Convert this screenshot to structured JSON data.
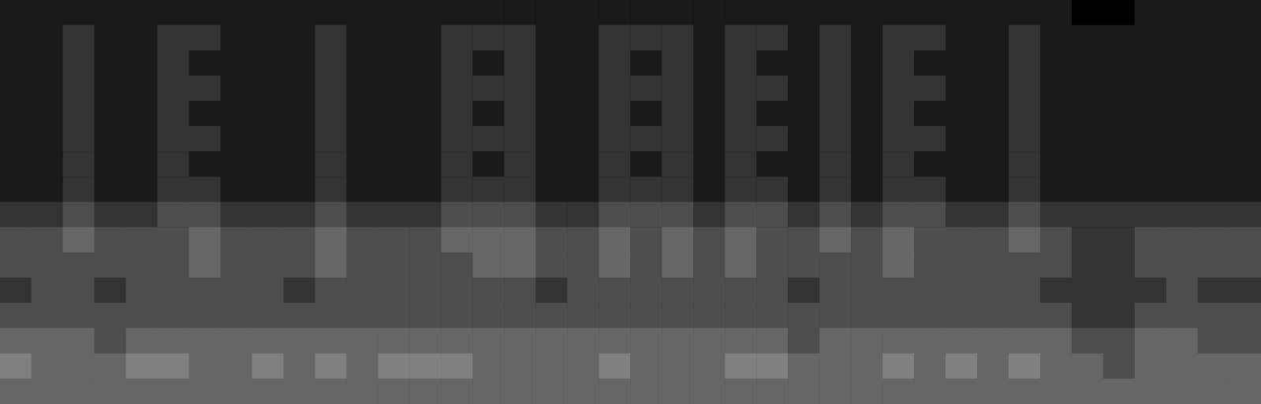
{
  "chart_data": {
    "type": "heatmap",
    "tick_labels": false,
    "color_range": [
      0,
      10
    ],
    "cells": [
      [
        1,
        1,
        1,
        1,
        1,
        1,
        1,
        1,
        1,
        1,
        1,
        1,
        1,
        1,
        1,
        1,
        1,
        1,
        1,
        1,
        1,
        1,
        1,
        1,
        1,
        1,
        1,
        1,
        1,
        1,
        1,
        1,
        1,
        1,
        0,
        0,
        1,
        1,
        1,
        1
      ],
      [
        1,
        1,
        2,
        1,
        1,
        2,
        2,
        1,
        1,
        1,
        2,
        1,
        1,
        1,
        2,
        2,
        2,
        1,
        1,
        2,
        2,
        2,
        1,
        2,
        2,
        1,
        2,
        1,
        2,
        2,
        1,
        1,
        2,
        1,
        1,
        1,
        1,
        1,
        1,
        1
      ],
      [
        1,
        1,
        2,
        1,
        1,
        2,
        1,
        1,
        1,
        1,
        2,
        1,
        1,
        1,
        2,
        1,
        2,
        1,
        1,
        2,
        1,
        2,
        1,
        2,
        1,
        1,
        2,
        1,
        2,
        1,
        1,
        1,
        2,
        1,
        1,
        1,
        1,
        1,
        1,
        1
      ],
      [
        1,
        1,
        2,
        1,
        1,
        2,
        2,
        1,
        1,
        1,
        2,
        1,
        1,
        1,
        2,
        2,
        2,
        1,
        1,
        2,
        2,
        2,
        1,
        2,
        2,
        1,
        2,
        1,
        2,
        2,
        1,
        1,
        2,
        1,
        1,
        1,
        1,
        1,
        1,
        1
      ],
      [
        1,
        1,
        2,
        1,
        1,
        2,
        1,
        1,
        1,
        1,
        2,
        1,
        1,
        1,
        2,
        1,
        2,
        1,
        1,
        2,
        1,
        2,
        1,
        2,
        1,
        1,
        2,
        1,
        2,
        1,
        1,
        1,
        2,
        1,
        1,
        1,
        1,
        1,
        1,
        1
      ],
      [
        1,
        1,
        2,
        1,
        1,
        2,
        2,
        1,
        1,
        1,
        2,
        1,
        1,
        1,
        2,
        2,
        2,
        1,
        1,
        2,
        2,
        2,
        1,
        2,
        2,
        1,
        2,
        1,
        2,
        2,
        1,
        1,
        2,
        1,
        1,
        1,
        1,
        1,
        1,
        1
      ],
      [
        1,
        1,
        2,
        1,
        1,
        2,
        1,
        1,
        1,
        1,
        2,
        1,
        1,
        1,
        2,
        1,
        2,
        1,
        1,
        2,
        1,
        2,
        1,
        2,
        1,
        1,
        2,
        1,
        2,
        1,
        1,
        1,
        2,
        1,
        1,
        1,
        1,
        1,
        1,
        1
      ],
      [
        1,
        1,
        2,
        1,
        1,
        2,
        2,
        1,
        1,
        1,
        2,
        1,
        1,
        1,
        2,
        2,
        2,
        1,
        1,
        2,
        2,
        2,
        1,
        2,
        2,
        1,
        2,
        1,
        2,
        2,
        1,
        1,
        2,
        1,
        1,
        1,
        1,
        1,
        1,
        1
      ],
      [
        2,
        2,
        3,
        2,
        2,
        3,
        3,
        2,
        2,
        2,
        3,
        2,
        2,
        2,
        3,
        3,
        3,
        2,
        2,
        3,
        3,
        3,
        2,
        3,
        3,
        2,
        3,
        2,
        3,
        3,
        2,
        2,
        3,
        2,
        2,
        2,
        2,
        2,
        2,
        2
      ],
      [
        3,
        3,
        4,
        3,
        3,
        3,
        4,
        3,
        3,
        3,
        4,
        3,
        3,
        3,
        4,
        4,
        4,
        3,
        3,
        4,
        3,
        4,
        3,
        4,
        3,
        3,
        4,
        3,
        4,
        3,
        3,
        3,
        4,
        3,
        2,
        2,
        3,
        3,
        3,
        3
      ],
      [
        3,
        3,
        3,
        3,
        3,
        3,
        4,
        3,
        3,
        3,
        4,
        3,
        3,
        3,
        3,
        4,
        4,
        3,
        3,
        4,
        3,
        4,
        3,
        4,
        3,
        3,
        3,
        3,
        4,
        3,
        3,
        3,
        3,
        3,
        2,
        2,
        3,
        3,
        3,
        3
      ],
      [
        2,
        3,
        3,
        2,
        3,
        3,
        3,
        3,
        3,
        2,
        3,
        3,
        3,
        3,
        3,
        3,
        3,
        2,
        3,
        3,
        3,
        3,
        3,
        3,
        3,
        2,
        3,
        3,
        3,
        3,
        3,
        3,
        3,
        2,
        2,
        2,
        2,
        3,
        2,
        2
      ],
      [
        3,
        3,
        3,
        3,
        3,
        3,
        3,
        3,
        3,
        3,
        3,
        3,
        3,
        3,
        3,
        3,
        3,
        3,
        3,
        3,
        3,
        3,
        3,
        3,
        3,
        3,
        3,
        3,
        3,
        3,
        3,
        3,
        3,
        3,
        2,
        2,
        3,
        3,
        3,
        3
      ],
      [
        4,
        4,
        4,
        3,
        4,
        4,
        4,
        4,
        4,
        4,
        4,
        4,
        4,
        4,
        4,
        4,
        4,
        4,
        4,
        4,
        4,
        4,
        4,
        4,
        4,
        3,
        4,
        4,
        4,
        4,
        4,
        4,
        4,
        4,
        3,
        3,
        4,
        4,
        3,
        3
      ],
      [
        5,
        4,
        4,
        4,
        5,
        5,
        4,
        4,
        5,
        4,
        5,
        4,
        5,
        5,
        5,
        4,
        4,
        4,
        4,
        5,
        4,
        4,
        4,
        5,
        5,
        4,
        4,
        4,
        5,
        4,
        5,
        4,
        5,
        4,
        4,
        3,
        4,
        4,
        4,
        4
      ],
      [
        4,
        4,
        4,
        4,
        4,
        4,
        4,
        4,
        4,
        4,
        4,
        4,
        4,
        4,
        4,
        4,
        4,
        4,
        4,
        4,
        4,
        4,
        4,
        4,
        4,
        4,
        4,
        4,
        4,
        4,
        4,
        4,
        4,
        4,
        4,
        4,
        4,
        4,
        4,
        4
      ]
    ]
  }
}
